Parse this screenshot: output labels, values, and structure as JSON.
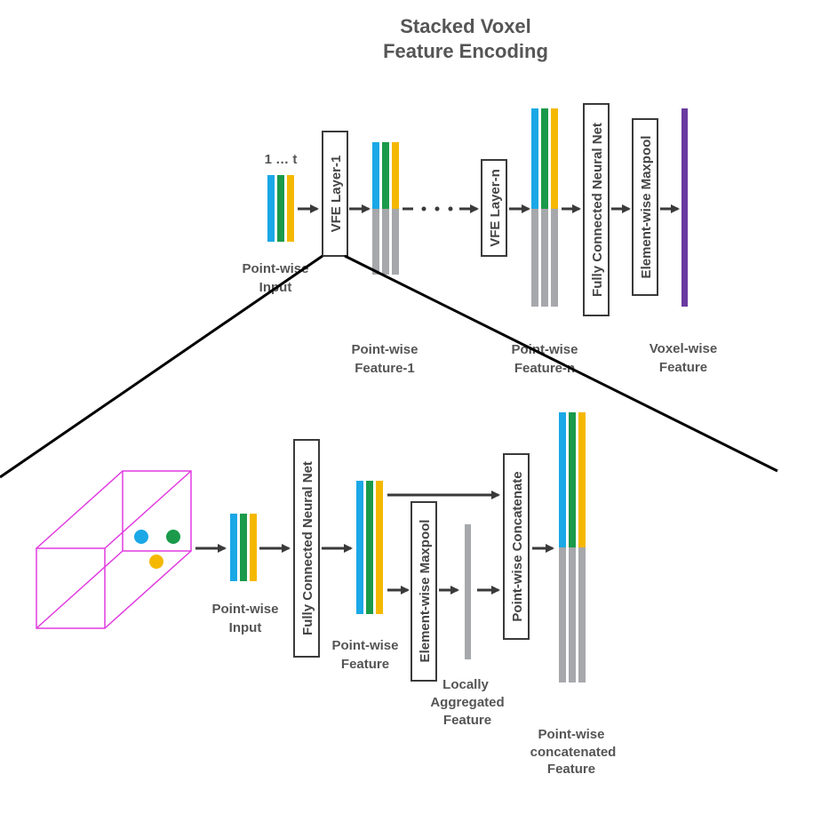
{
  "title": {
    "line1": "Stacked Voxel",
    "line2": "Feature Encoding"
  },
  "colors": {
    "blue": "#1aa8e6",
    "green": "#1a9a4a",
    "yellow": "#f5b800",
    "gray": "#a6a8ab",
    "purple": "#6a3aa0",
    "magenta": "#e03ce0",
    "arrow": "#3a3a3a",
    "text": "#555555"
  },
  "top": {
    "index_label": "1 … t",
    "input_label": {
      "line1": "Point-wise",
      "line2": "Input"
    },
    "layer1_label": "VFE Layer-1",
    "feature1_label": {
      "line1": "Point-wise",
      "line2": "Feature-1"
    },
    "layern_label": "VFE Layer-n",
    "featuren_label": {
      "line1": "Point-wise",
      "line2": "Feature-n"
    },
    "fcn_label": "Fully Connected Neural Net",
    "maxpool_label": "Element-wise Maxpool",
    "voxel_label": {
      "line1": "Voxel-wise",
      "line2": "Feature"
    }
  },
  "bottom": {
    "input_label": {
      "line1": "Point-wise",
      "line2": "Input"
    },
    "fcn_label": "Fully Connected Neural Net",
    "feature_label": {
      "line1": "Point-wise",
      "line2": "Feature"
    },
    "maxpool_label": "Element-wise Maxpool",
    "local_label": {
      "line1": "Locally",
      "line2": "Aggregated",
      "line3": "Feature"
    },
    "concat_label": "Point-wise Concatenate",
    "concat_feature_label": {
      "line1": "Point-wise",
      "line2": "concatenated",
      "line3": "Feature"
    }
  }
}
